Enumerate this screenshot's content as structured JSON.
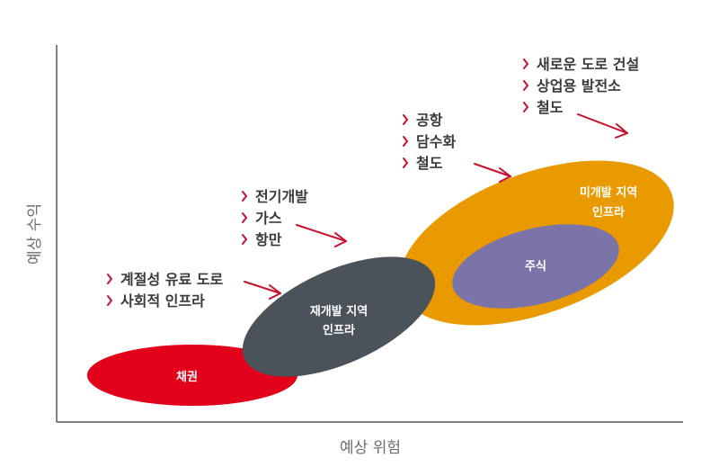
{
  "axes": {
    "x_title": "예상 위험",
    "y_title": "예상 수익"
  },
  "colors": {
    "axis": "#555555",
    "bonds": "#e2001a",
    "redevelopment": "#4a535a",
    "undeveloped": "#e99a00",
    "equities": "#7b74a8",
    "arrow": "#c8102e",
    "bullet_text": "#3a3a3a"
  },
  "ellipses": {
    "bonds": "채권",
    "redevelopment_line1": "재개발 지역",
    "redevelopment_line2": "인프라",
    "undeveloped_line1": "미개발 지역",
    "undeveloped_line2": "인프라",
    "equities": "주식"
  },
  "groups": {
    "group1": [
      "계절성 유료 도로",
      "사회적 인프라"
    ],
    "group2": [
      "전기개발",
      "가스",
      "항만"
    ],
    "group3": [
      "공항",
      "담수화",
      "철도"
    ],
    "group4": [
      "새로운 도로 건설",
      "상업용 발전소",
      "철도"
    ]
  }
}
